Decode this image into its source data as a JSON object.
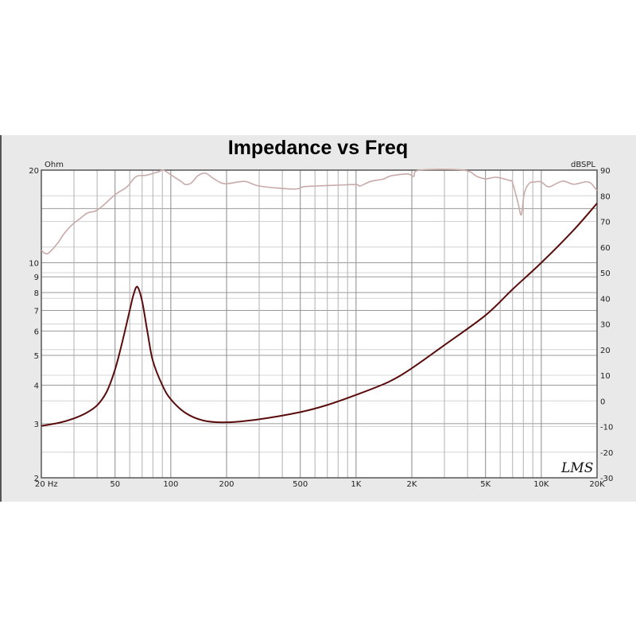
{
  "chart_data": {
    "type": "line",
    "title": "Impedance vs Freq",
    "xscale": "log",
    "xlim": [
      20,
      20000
    ],
    "x_ticks": [
      {
        "value": 20,
        "label": "20 Hz"
      },
      {
        "value": 50,
        "label": "50"
      },
      {
        "value": 100,
        "label": "100"
      },
      {
        "value": 200,
        "label": "200"
      },
      {
        "value": 500,
        "label": "500"
      },
      {
        "value": 1000,
        "label": "1K"
      },
      {
        "value": 2000,
        "label": "2K"
      },
      {
        "value": 5000,
        "label": "5K"
      },
      {
        "value": 10000,
        "label": "10K"
      },
      {
        "value": 20000,
        "label": "20K"
      }
    ],
    "left_axis": {
      "label": "Ohm",
      "scale": "log",
      "ylim": [
        2,
        20
      ],
      "ticks": [
        20,
        10,
        9,
        8,
        7,
        6,
        5,
        4,
        3,
        2
      ]
    },
    "right_axis": {
      "label": "dBSPL",
      "scale": "linear",
      "ylim": [
        -30,
        90
      ],
      "ticks": [
        90,
        80,
        70,
        60,
        50,
        40,
        30,
        20,
        10,
        0,
        -10,
        -20,
        -30
      ]
    },
    "grid": true,
    "watermark": "LMS",
    "series": [
      {
        "axis": "left",
        "color": "#5a0c0c",
        "x": [
          20,
          25,
          30,
          35,
          40,
          45,
          50,
          55,
          60,
          63,
          66,
          70,
          75,
          80,
          90,
          100,
          120,
          150,
          200,
          300,
          500,
          700,
          1000,
          1500,
          2000,
          3000,
          5000,
          7000,
          10000,
          15000,
          20000
        ],
        "values": [
          2.95,
          3.02,
          3.12,
          3.25,
          3.44,
          3.8,
          4.5,
          5.6,
          7.0,
          7.9,
          8.35,
          7.5,
          5.9,
          4.8,
          4.0,
          3.6,
          3.25,
          3.07,
          3.03,
          3.1,
          3.27,
          3.45,
          3.72,
          4.1,
          4.54,
          5.4,
          6.75,
          8.2,
          10.0,
          12.8,
          15.6
        ]
      },
      {
        "axis": "right",
        "color": "#c9aaaa",
        "x": [
          20,
          21,
          22,
          24.5,
          26.4,
          29.2,
          32.2,
          35.5,
          39,
          42.3,
          50,
          58,
          65,
          74,
          86,
          91,
          100,
          114,
          120,
          129,
          140,
          154,
          172,
          196,
          250,
          300,
          460,
          520,
          600,
          770,
          1000,
          1050,
          1200,
          1400,
          1550,
          1900,
          2050,
          2200,
          3800,
          4500,
          5000,
          5700,
          6700,
          7000,
          7500,
          7800,
          8100,
          8600,
          9200,
          10000,
          11000,
          13000,
          15000,
          18000,
          20000
        ],
        "values": [
          58.7,
          57.5,
          57.8,
          61.5,
          65,
          68.6,
          71,
          73.3,
          74,
          75.7,
          80.4,
          83.5,
          87.5,
          88,
          89.4,
          90,
          88.2,
          85.5,
          84.4,
          85,
          87.8,
          88.8,
          86.5,
          84.7,
          85.6,
          83.8,
          82.6,
          83.5,
          83.8,
          84.1,
          84.4,
          83.8,
          85.6,
          86.5,
          87.8,
          88.5,
          87.6,
          90,
          90,
          87.5,
          86.6,
          87.2,
          86,
          85,
          77,
          72.6,
          81,
          84.8,
          85.4,
          85.4,
          83.5,
          85.7,
          84.5,
          85.4,
          82
        ]
      }
    ]
  }
}
